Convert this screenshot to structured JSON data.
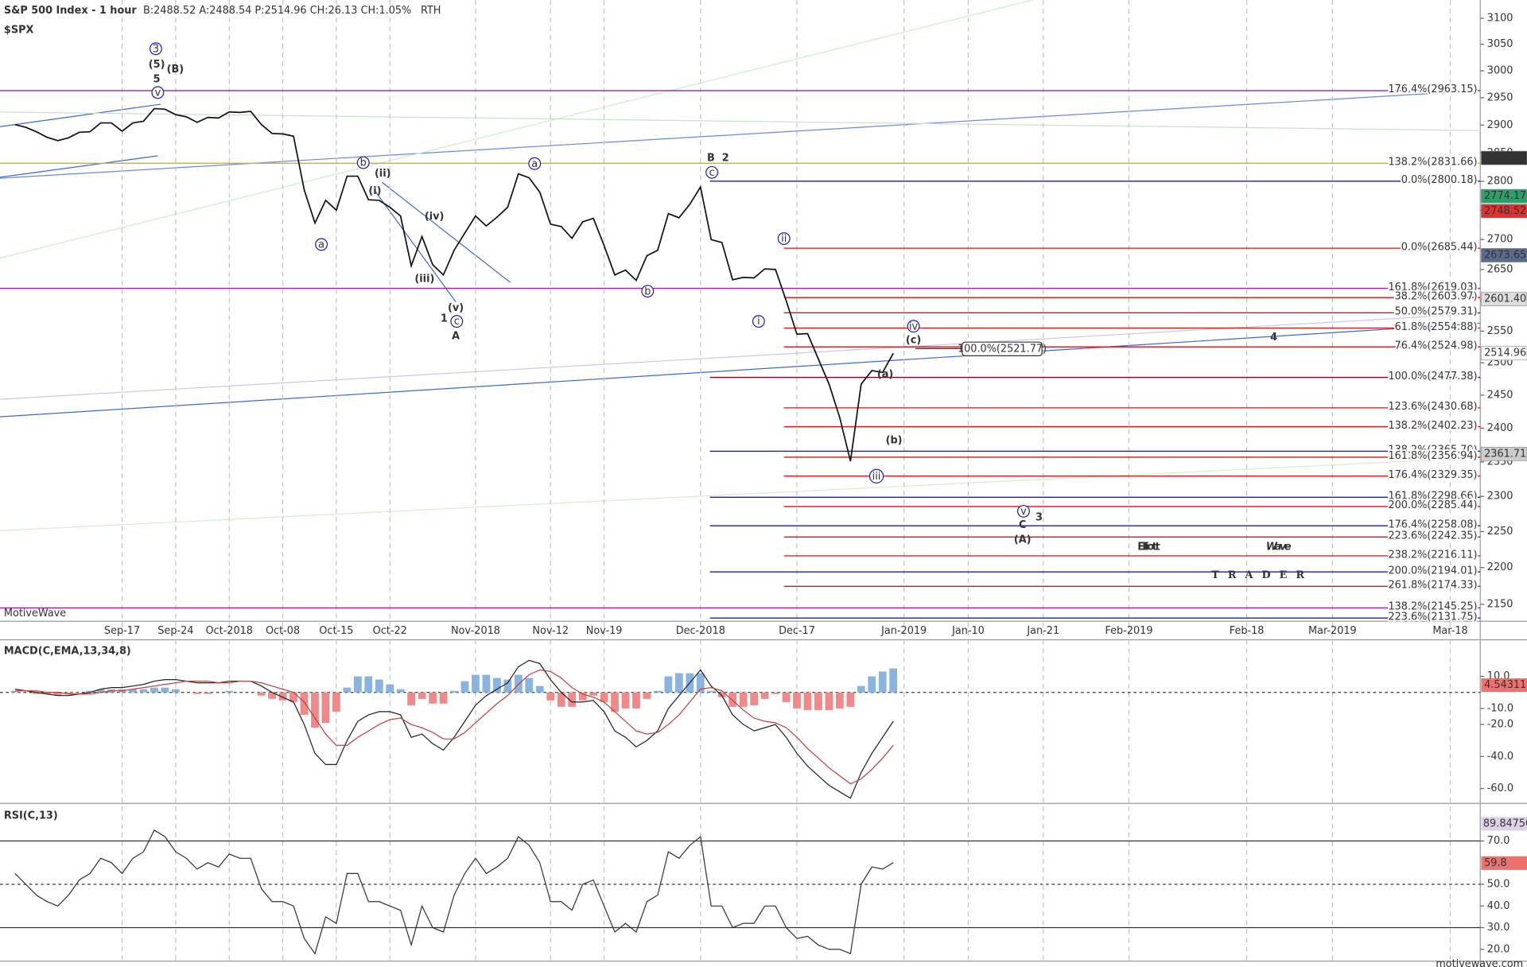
{
  "chart_data": [
    {
      "type": "line",
      "log": true,
      "title": "S&P 500 Index - 1 hour",
      "subtitle": "B:2488.52 A:2488.54 P:2514.96 CH:26.13 CH:1.05%",
      "session": "RTH",
      "symbol": "$SPX",
      "watermark": "MotiveWave",
      "footer": "motivewave.com",
      "logo": {
        "first": "Elliott",
        "second": "Wave",
        "sub": "TRADER"
      },
      "color": "#111111",
      "values": [
        2901,
        2896,
        2888,
        2878,
        2872,
        2877,
        2887,
        2888,
        2904,
        2904,
        2889,
        2904,
        2907,
        2930,
        2929,
        2919,
        2915,
        2905,
        2914,
        2913,
        2924,
        2923,
        2925,
        2901,
        2885,
        2884,
        2880,
        2785,
        2728,
        2767,
        2750,
        2809,
        2809,
        2768,
        2767,
        2755,
        2740,
        2656,
        2705,
        2658,
        2641,
        2682,
        2711,
        2740,
        2723,
        2738,
        2755,
        2813,
        2806,
        2781,
        2726,
        2722,
        2702,
        2730,
        2736,
        2690,
        2641,
        2649,
        2632,
        2673,
        2682,
        2744,
        2737,
        2760,
        2790,
        2700,
        2695,
        2633,
        2637,
        2636,
        2651,
        2650,
        2599,
        2545,
        2546,
        2506,
        2467,
        2416,
        2351,
        2467,
        2488,
        2485,
        2514.96
      ],
      "xlim": [
        -1.4,
        136.8
      ],
      "xticks": [
        {
          "value": 10,
          "label": "Sep-17"
        },
        {
          "value": 15,
          "label": "Sep-24"
        },
        {
          "value": 20,
          "label": "Oct-2018"
        },
        {
          "value": 25,
          "label": "Oct-08"
        },
        {
          "value": 30,
          "label": "Oct-15"
        },
        {
          "value": 35,
          "label": "Oct-22"
        },
        {
          "value": 43,
          "label": "Nov-2018"
        },
        {
          "value": 50,
          "label": "Nov-12"
        },
        {
          "value": 55,
          "label": "Nov-19"
        },
        {
          "value": 64,
          "label": "Dec-2018"
        },
        {
          "value": 73,
          "label": "Dec-17"
        },
        {
          "value": 83,
          "label": "Jan-2019"
        },
        {
          "value": 89,
          "label": "Jan-10"
        },
        {
          "value": 96,
          "label": "Jan-21"
        },
        {
          "value": 104,
          "label": "Feb-2019"
        },
        {
          "value": 115,
          "label": "Feb-18"
        },
        {
          "value": 123,
          "label": "Mar-2019"
        },
        {
          "value": 134,
          "label": "Mar-18"
        }
      ],
      "ylim": [
        2130,
        3126
      ],
      "yticks": [
        2150,
        2200,
        2250,
        2300,
        2350,
        2400,
        2450,
        2500,
        2550,
        2600,
        2650,
        2700,
        2750,
        2800,
        2850,
        2900,
        2950,
        3000,
        3050,
        3100
      ],
      "levels": [
        {
          "label": "176.4%(2963.15)",
          "value": 2963.15,
          "color": "#a020a0"
        },
        {
          "label": "138.2%(2831.66)",
          "value": 2831.66,
          "color": "#e0b000"
        },
        {
          "label": "0.0%(2800.18)",
          "value": 2800.18,
          "color": "#1a1acc"
        },
        {
          "label": "0.0%(2685.44)",
          "value": 2685.44,
          "color": "#dd1111"
        },
        {
          "label": "161.8%(2619.03)",
          "value": 2619.03,
          "color": "#a020a0"
        },
        {
          "label": "38.2%(2603.97)",
          "value": 2603.97,
          "color": "#dd1111"
        },
        {
          "label": "50.0%(2579.31)",
          "value": 2579.31,
          "color": "#dd1111"
        },
        {
          "label": "61.8%(2554.88)",
          "value": 2554.88,
          "color": "#dd1111"
        },
        {
          "label": "76.4%(2524.98)",
          "value": 2524.98,
          "color": "#dd1111"
        },
        {
          "label": "100.0%(2477.38)",
          "value": 2477.38,
          "color": "#800020"
        },
        {
          "label": "123.6%(2430.68)",
          "value": 2430.68,
          "color": "#dd1111"
        },
        {
          "label": "138.2%(2402.23)",
          "value": 2402.23,
          "color": "#dd1111"
        },
        {
          "label": "138.2%(2365.70)",
          "value": 2365.7,
          "color": "#1a1acc"
        },
        {
          "label": "161.8%(2356.94)",
          "value": 2356.94,
          "color": "#dd1111"
        },
        {
          "label": "176.4%(2329.35)",
          "value": 2329.35,
          "color": "#dd1111"
        },
        {
          "label": "161.8%(2298.66)",
          "value": 2298.66,
          "color": "#1a1acc"
        },
        {
          "label": "200.0%(2285.44)",
          "value": 2285.44,
          "color": "#dd1111"
        },
        {
          "label": "176.4%(2258.08)",
          "value": 2258.08,
          "color": "#1a1acc"
        },
        {
          "label": "223.6%(2242.35)",
          "value": 2242.35,
          "color": "#dd1111"
        },
        {
          "label": "238.2%(2216.11)",
          "value": 2216.11,
          "color": "#dd1111"
        },
        {
          "label": "200.0%(2194.01)",
          "value": 2194.01,
          "color": "#1a1acc"
        },
        {
          "label": "261.8%(2174.33)",
          "value": 2174.33,
          "color": "#dd1111"
        },
        {
          "label": "138.2%(2145.25)",
          "value": 2145.25,
          "color": "#a020a0"
        },
        {
          "label": "223.6%(2131.75)",
          "value": 2131.75,
          "color": "#1a1acc"
        }
      ],
      "boxed_level": {
        "label": "100.0%(2521.77)",
        "value": 2521.77
      },
      "price_tags": [
        {
          "value": 2841.09,
          "label": "2841.09",
          "bg": "#333333",
          "fg": "#ffffff"
        },
        {
          "value": 2774.17,
          "label": "2774.17",
          "bg": "#2e9e6a",
          "fg": "#ffffff"
        },
        {
          "value": 2748.52,
          "label": "2748.52",
          "bg": "#e03030",
          "fg": "#ffffff"
        },
        {
          "value": 2673.65,
          "label": "2673.65",
          "bg": "#5a6a8a",
          "fg": "#ffffff"
        },
        {
          "value": 2601.4,
          "label": "2601.40",
          "bg": "#dddddd",
          "fg": "#000000"
        },
        {
          "value": 2514.96,
          "label": "2514.96",
          "bg": "#ffffff",
          "fg": "#000000"
        },
        {
          "value": 2361.71,
          "label": "2361.71",
          "bg": "#cccccc",
          "fg": "#000000"
        }
      ],
      "wave_labels": [
        {
          "text": "3",
          "color": "#1a1acc",
          "circled": true
        },
        {
          "text": "(5)",
          "color": "#111188",
          "circled": false
        },
        {
          "text": "(B)",
          "color": "#dd1111",
          "circled": false
        },
        {
          "text": "5",
          "color": "#1a1acc",
          "circled": false
        },
        {
          "text": "v",
          "color": "#1a1acc",
          "circled": true
        },
        {
          "text": "b",
          "color": "#1a1acc",
          "circled": true
        },
        {
          "text": "(ii)",
          "color": "#1a1acc",
          "circled": false
        },
        {
          "text": "a",
          "color": "#1a1acc",
          "circled": true
        },
        {
          "text": "(i)",
          "color": "#1a1acc",
          "circled": false
        },
        {
          "text": "(iv)",
          "color": "#1a1acc",
          "circled": false
        },
        {
          "text": "(iii)",
          "color": "#1a1acc",
          "circled": false
        },
        {
          "text": "(v)",
          "color": "#1a1acc",
          "circled": false
        },
        {
          "text": "c",
          "color": "#1a1acc",
          "circled": true
        },
        {
          "text": "1",
          "color": "#dd1111",
          "circled": false
        },
        {
          "text": "A",
          "color": "#1a1acc",
          "circled": false
        },
        {
          "text": "a",
          "color": "#1a1acc",
          "circled": true
        },
        {
          "text": "b",
          "color": "#1a1acc",
          "circled": true
        },
        {
          "text": "B",
          "color": "#1a1acc",
          "circled": false
        },
        {
          "text": "2",
          "color": "#dd1111",
          "circled": false
        },
        {
          "text": "c",
          "color": "#1a1acc",
          "circled": true
        },
        {
          "text": "ii",
          "color": "#1a1acc",
          "circled": true
        },
        {
          "text": "i",
          "color": "#1a1acc",
          "circled": true
        },
        {
          "text": "iv",
          "color": "#1a1acc",
          "circled": true
        },
        {
          "text": "(c)",
          "color": "#1a1acc",
          "circled": false
        },
        {
          "text": "(a)",
          "color": "#1a1acc",
          "circled": false
        },
        {
          "text": "(b)",
          "color": "#1a1acc",
          "circled": false
        },
        {
          "text": "iii",
          "color": "#1a1acc",
          "circled": true
        },
        {
          "text": "v",
          "color": "#1a1acc",
          "circled": true
        },
        {
          "text": "3",
          "color": "#dd1111",
          "circled": false
        },
        {
          "text": "C",
          "color": "#1a1acc",
          "circled": false
        },
        {
          "text": "(A)",
          "color": "#111188",
          "circled": false
        },
        {
          "text": "4",
          "color": "#dd1111",
          "circled": false
        }
      ]
    },
    {
      "type": "macd",
      "title": "MACD(C,EMA,13,34,8)",
      "series": [
        {
          "color": "#222222",
          "values": [
            2,
            1,
            0,
            -1,
            -2,
            -2,
            -1,
            0,
            2,
            3,
            3,
            4,
            5,
            7,
            8,
            8,
            7,
            6,
            6,
            6,
            7,
            7,
            7,
            4,
            0,
            -3,
            -6,
            -20,
            -38,
            -45,
            -45,
            -30,
            -18,
            -14,
            -12,
            -12,
            -14,
            -28,
            -26,
            -32,
            -36,
            -28,
            -18,
            -8,
            -2,
            2,
            6,
            16,
            20,
            18,
            8,
            0,
            -6,
            -6,
            -5,
            -12,
            -24,
            -28,
            -34,
            -30,
            -24,
            -10,
            -2,
            6,
            14,
            4,
            -2,
            -14,
            -20,
            -24,
            -22,
            -20,
            -28,
            -38,
            -46,
            -52,
            -58,
            -62,
            -66,
            -50,
            -38,
            -28,
            -18
          ]
        },
        {
          "color": "#c04040",
          "values": [
            1,
            1,
            1,
            0,
            0,
            -1,
            -1,
            -1,
            0,
            1,
            1,
            2,
            3,
            4,
            5,
            6,
            7,
            7,
            7,
            6,
            6,
            7,
            7,
            6,
            4,
            2,
            0,
            -6,
            -16,
            -26,
            -33,
            -33,
            -28,
            -24,
            -20,
            -17,
            -16,
            -20,
            -22,
            -25,
            -29,
            -29,
            -25,
            -19,
            -13,
            -7,
            -2,
            5,
            11,
            14,
            13,
            9,
            3,
            -1,
            -3,
            -6,
            -12,
            -18,
            -24,
            -26,
            -25,
            -20,
            -14,
            -6,
            2,
            3,
            1,
            -5,
            -11,
            -16,
            -18,
            -19,
            -22,
            -28,
            -35,
            -41,
            -47,
            -52,
            -57,
            -54,
            -48,
            -41,
            -33
          ]
        }
      ],
      "histogram": {
        "positive_color": "#8ab4e0",
        "negative_color": "#f08a8a",
        "values": [
          1,
          0,
          -1,
          -1,
          -2,
          -1,
          0,
          1,
          2,
          2,
          2,
          2,
          2,
          3,
          3,
          2,
          0,
          -1,
          -1,
          0,
          1,
          0,
          0,
          -2,
          -4,
          -5,
          -6,
          -14,
          -22,
          -19,
          -12,
          3,
          10,
          10,
          8,
          5,
          2,
          -8,
          -4,
          -7,
          -7,
          1,
          7,
          11,
          11,
          9,
          8,
          11,
          9,
          4,
          -5,
          -9,
          -9,
          -5,
          -2,
          -6,
          -12,
          -10,
          -10,
          -4,
          1,
          10,
          12,
          12,
          12,
          1,
          -3,
          -9,
          -9,
          -8,
          -4,
          -1,
          -6,
          -10,
          -11,
          -11,
          -11,
          -10,
          -9,
          4,
          10,
          13,
          15
        ]
      },
      "ylim": [
        -68,
        31
      ],
      "yticks": [
        {
          "value": 10,
          "label": "10.0"
        },
        {
          "value": -10,
          "label": "-10.0"
        },
        {
          "value": -20,
          "label": "-20.0"
        },
        {
          "value": -40,
          "label": "-40.0"
        },
        {
          "value": -60,
          "label": "-60.0"
        }
      ],
      "last_value": 4.54311
    },
    {
      "type": "rsi",
      "title": "RSI(C,13)",
      "color": "#333333",
      "values": [
        55,
        50,
        45,
        42,
        40,
        45,
        52,
        55,
        62,
        60,
        55,
        62,
        65,
        75,
        72,
        65,
        62,
        57,
        60,
        58,
        64,
        62,
        62,
        48,
        42,
        42,
        40,
        25,
        18,
        35,
        32,
        55,
        55,
        42,
        42,
        40,
        38,
        22,
        40,
        30,
        28,
        45,
        55,
        62,
        55,
        58,
        62,
        72,
        68,
        60,
        42,
        42,
        38,
        50,
        52,
        40,
        28,
        32,
        28,
        42,
        45,
        65,
        62,
        68,
        72,
        40,
        40,
        30,
        32,
        32,
        40,
        40,
        30,
        25,
        26,
        22,
        20,
        20,
        18,
        50,
        58,
        57,
        60
      ],
      "ylim": [
        15,
        86
      ],
      "yticks": [
        {
          "value": 70,
          "label": "70.0"
        },
        {
          "value": 50,
          "label": "50.0"
        },
        {
          "value": 40,
          "label": "40.0"
        },
        {
          "value": 30,
          "label": "30.0"
        },
        {
          "value": 20,
          "label": "20.0"
        }
      ],
      "levels": [
        {
          "value": 70,
          "dashed": false
        },
        {
          "value": 50,
          "dashed": true
        },
        {
          "value": 30,
          "dashed": false
        }
      ],
      "last_value": 59.8,
      "other_tag": "89.84750"
    }
  ]
}
